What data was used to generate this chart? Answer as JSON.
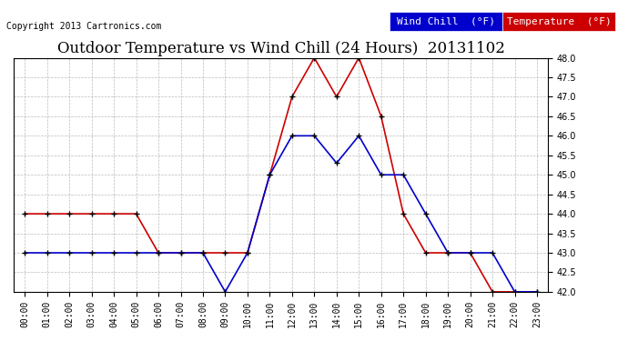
{
  "title": "Outdoor Temperature vs Wind Chill (24 Hours)  20131102",
  "copyright": "Copyright 2013 Cartronics.com",
  "legend_wind_chill": "Wind Chill  (°F)",
  "legend_temperature": "Temperature  (°F)",
  "x_labels": [
    "00:00",
    "01:00",
    "02:00",
    "03:00",
    "04:00",
    "05:00",
    "06:00",
    "07:00",
    "08:00",
    "09:00",
    "10:00",
    "11:00",
    "12:00",
    "13:00",
    "14:00",
    "15:00",
    "16:00",
    "17:00",
    "18:00",
    "19:00",
    "20:00",
    "21:00",
    "22:00",
    "23:00"
  ],
  "temperature": [
    44.0,
    44.0,
    44.0,
    44.0,
    44.0,
    44.0,
    43.0,
    43.0,
    43.0,
    43.0,
    43.0,
    45.0,
    47.0,
    48.0,
    47.0,
    48.0,
    46.5,
    44.0,
    43.0,
    43.0,
    43.0,
    42.0,
    42.0,
    42.0
  ],
  "wind_chill": [
    43.0,
    43.0,
    43.0,
    43.0,
    43.0,
    43.0,
    43.0,
    43.0,
    43.0,
    42.0,
    43.0,
    45.0,
    46.0,
    46.0,
    45.3,
    46.0,
    45.0,
    45.0,
    44.0,
    43.0,
    43.0,
    43.0,
    42.0,
    42.0
  ],
  "wind_chill_color": "#0000cc",
  "temperature_color": "#cc0000",
  "marker_color": "#000000",
  "ylim_min": 42.0,
  "ylim_max": 48.0,
  "ytick_step": 0.5,
  "background_color": "#ffffff",
  "grid_color": "#aaaaaa",
  "title_fontsize": 12,
  "axis_fontsize": 7,
  "copyright_fontsize": 7,
  "legend_fontsize": 8
}
